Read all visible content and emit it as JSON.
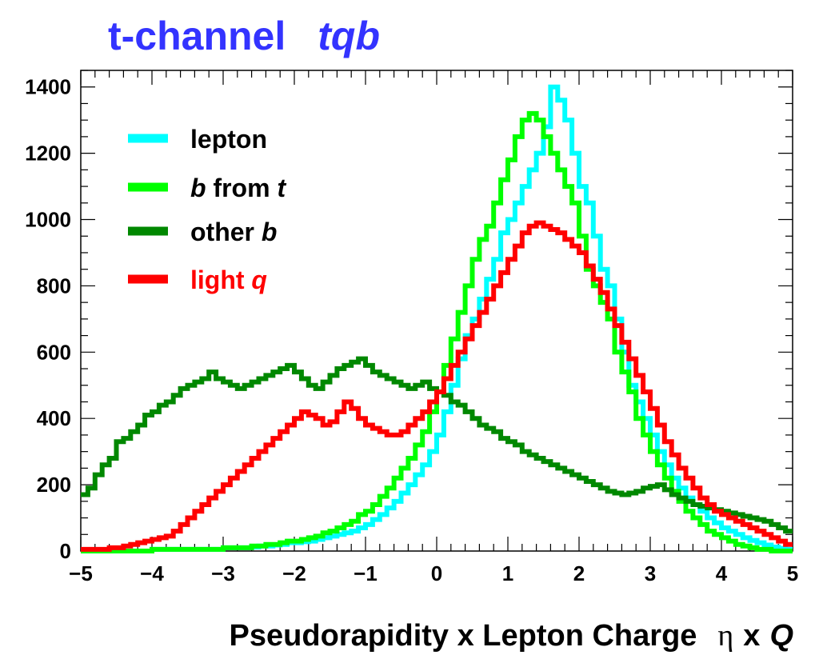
{
  "chart_data": {
    "type": "line",
    "style": "step-histogram",
    "title_parts": [
      {
        "text": "t-channel",
        "italic": false
      },
      {
        "text": "tqb",
        "italic": true
      }
    ],
    "title_color": "#3333ff",
    "xlabel_parts": [
      {
        "text": "Pseudorapidity x Lepton Charge",
        "italic": false,
        "font": "sans"
      },
      {
        "text": "η",
        "italic": false,
        "font": "serif"
      },
      {
        "text": "x",
        "italic": false,
        "font": "sans"
      },
      {
        "text": "Q",
        "italic": true,
        "font": "sans"
      }
    ],
    "ylabel": "",
    "xlim": [
      -5,
      5
    ],
    "ylim": [
      0,
      1450
    ],
    "x_ticks": [
      -5,
      -4,
      -3,
      -2,
      -1,
      0,
      1,
      2,
      3,
      4,
      5
    ],
    "x_tick_labels": [
      "−5",
      "−4",
      "−3",
      "−2",
      "−1",
      "0",
      "1",
      "2",
      "3",
      "4",
      "5"
    ],
    "y_ticks": [
      0,
      200,
      400,
      600,
      800,
      1000,
      1200,
      1400
    ],
    "y_tick_labels": [
      "0",
      "200",
      "400",
      "600",
      "800",
      "1000",
      "1200",
      "1400"
    ],
    "grid": false,
    "legend_position": "top-left",
    "bin_width": 0.1,
    "bin_edges_start": -5,
    "series": [
      {
        "name_parts": [
          {
            "text": "lepton",
            "italic": false
          }
        ],
        "color": "#00ffff",
        "legend_text_color": "#000000",
        "values": [
          0,
          0,
          0,
          0,
          0,
          0,
          0,
          0,
          0,
          0,
          5,
          5,
          5,
          5,
          5,
          5,
          5,
          5,
          5,
          5,
          10,
          10,
          10,
          10,
          12,
          15,
          15,
          18,
          20,
          25,
          25,
          28,
          30,
          35,
          40,
          45,
          50,
          55,
          60,
          70,
          80,
          95,
          110,
          130,
          150,
          175,
          200,
          230,
          260,
          300,
          350,
          420,
          500,
          580,
          650,
          700,
          760,
          820,
          880,
          960,
          1000,
          1050,
          1100,
          1150,
          1200,
          1280,
          1400,
          1360,
          1300,
          1200,
          1100,
          1050,
          950,
          850,
          800,
          700,
          600,
          500,
          450,
          400,
          350,
          300,
          260,
          220,
          190,
          160,
          140,
          120,
          100,
          85,
          70,
          60,
          50,
          40,
          32,
          25,
          18,
          12,
          8,
          5
        ]
      },
      {
        "name_parts": [
          {
            "text": "b",
            "italic": true
          },
          {
            "text": " from ",
            "italic": false
          },
          {
            "text": "t",
            "italic": true
          }
        ],
        "color": "#00ff00",
        "legend_text_color": "#000000",
        "values": [
          0,
          0,
          0,
          0,
          0,
          0,
          0,
          0,
          0,
          0,
          5,
          5,
          5,
          5,
          5,
          5,
          5,
          5,
          5,
          5,
          10,
          10,
          10,
          10,
          15,
          15,
          20,
          20,
          25,
          30,
          30,
          35,
          40,
          45,
          55,
          60,
          70,
          80,
          90,
          110,
          120,
          140,
          165,
          190,
          220,
          250,
          280,
          320,
          360,
          420,
          480,
          560,
          640,
          720,
          800,
          880,
          940,
          980,
          1050,
          1120,
          1180,
          1250,
          1300,
          1320,
          1300,
          1250,
          1200,
          1150,
          1100,
          1050,
          950,
          850,
          800,
          750,
          700,
          600,
          540,
          480,
          400,
          350,
          300,
          260,
          220,
          180,
          150,
          120,
          100,
          80,
          60,
          50,
          40,
          30,
          20,
          15,
          10,
          5,
          5,
          0,
          0,
          0
        ]
      },
      {
        "name_parts": [
          {
            "text": "other ",
            "italic": false
          },
          {
            "text": "b",
            "italic": true
          }
        ],
        "color": "#008800",
        "legend_text_color": "#000000",
        "values": [
          170,
          190,
          230,
          260,
          280,
          330,
          340,
          360,
          380,
          410,
          420,
          440,
          450,
          470,
          490,
          500,
          510,
          520,
          540,
          520,
          510,
          500,
          490,
          500,
          510,
          520,
          530,
          540,
          550,
          560,
          540,
          520,
          500,
          490,
          510,
          530,
          550,
          560,
          570,
          580,
          560,
          540,
          530,
          520,
          510,
          500,
          490,
          500,
          510,
          490,
          480,
          470,
          450,
          440,
          420,
          400,
          380,
          370,
          360,
          340,
          330,
          320,
          300,
          290,
          280,
          270,
          260,
          250,
          240,
          230,
          220,
          210,
          200,
          190,
          180,
          175,
          170,
          175,
          180,
          190,
          195,
          200,
          185,
          170,
          160,
          150,
          140,
          135,
          130,
          125,
          120,
          115,
          110,
          105,
          100,
          95,
          90,
          80,
          70,
          60
        ]
      },
      {
        "name_parts": [
          {
            "text": "light ",
            "italic": false
          },
          {
            "text": "q",
            "italic": true
          }
        ],
        "color": "#ff0000",
        "legend_text_color": "#ff0000",
        "values": [
          5,
          5,
          5,
          5,
          10,
          10,
          15,
          20,
          25,
          30,
          35,
          40,
          45,
          60,
          80,
          100,
          120,
          140,
          160,
          180,
          200,
          220,
          240,
          260,
          280,
          300,
          320,
          340,
          360,
          380,
          400,
          420,
          410,
          400,
          380,
          390,
          420,
          450,
          430,
          400,
          380,
          370,
          360,
          350,
          350,
          360,
          380,
          400,
          420,
          450,
          480,
          520,
          560,
          600,
          640,
          680,
          720,
          760,
          800,
          840,
          880,
          920,
          960,
          980,
          990,
          980,
          970,
          960,
          940,
          920,
          900,
          860,
          820,
          780,
          730,
          680,
          630,
          580,
          530,
          480,
          430,
          380,
          330,
          290,
          250,
          220,
          190,
          160,
          140,
          120,
          110,
          100,
          90,
          80,
          70,
          60,
          50,
          40,
          30,
          20
        ]
      }
    ]
  }
}
